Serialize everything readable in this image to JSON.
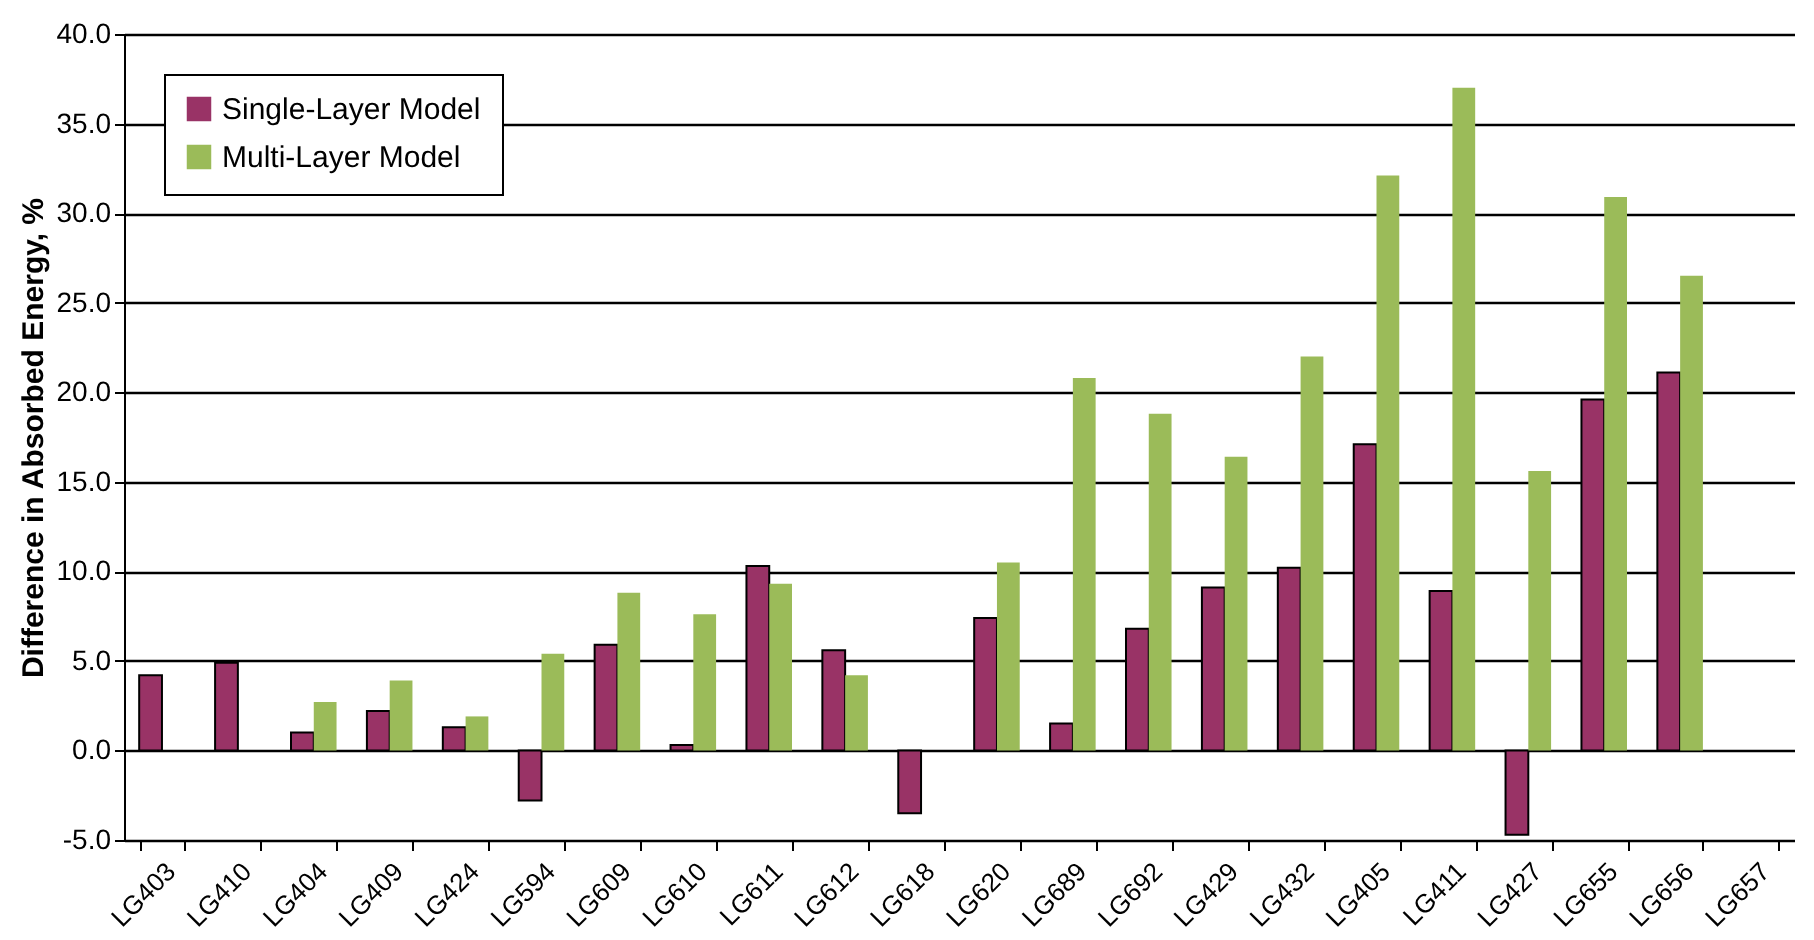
{
  "chart_data": {
    "type": "bar",
    "ylabel": "Difference in Absorbed Energy, %",
    "categories": [
      "LG403",
      "LG410",
      "LG404",
      "LG409",
      "LG424",
      "LG594",
      "LG609",
      "LG610",
      "LG611",
      "LG612",
      "LG618",
      "LG620",
      "LG689",
      "LG692",
      "LG429",
      "LG432",
      "LG405",
      "LG411",
      "LG427",
      "LG655",
      "LG656",
      "LG657"
    ],
    "series": [
      {
        "name": "Single-Layer Model",
        "color": "#993366",
        "values": [
          4.2,
          4.9,
          1.0,
          2.2,
          1.3,
          -2.8,
          5.9,
          0.3,
          10.3,
          5.6,
          -3.5,
          7.4,
          1.5,
          6.8,
          9.1,
          10.2,
          17.1,
          8.9,
          -4.7,
          19.6,
          21.1,
          null
        ]
      },
      {
        "name": "Multi-Layer Model",
        "color": "#9bbb59",
        "values": [
          null,
          null,
          2.7,
          3.9,
          1.9,
          5.4,
          8.8,
          7.6,
          9.3,
          4.2,
          null,
          10.5,
          20.8,
          18.8,
          16.4,
          22.0,
          32.1,
          37.0,
          15.6,
          30.9,
          26.5,
          null
        ]
      }
    ],
    "ylim": [
      -5,
      40
    ],
    "yticks": [
      {
        "value": -5,
        "label": "-5.0"
      },
      {
        "value": 0,
        "label": "0.0"
      },
      {
        "value": 5,
        "label": "5.0"
      },
      {
        "value": 10,
        "label": "10.0"
      },
      {
        "value": 15,
        "label": "15.0"
      },
      {
        "value": 20,
        "label": "20.0"
      },
      {
        "value": 25,
        "label": "25.0"
      },
      {
        "value": 30,
        "label": "30.0"
      },
      {
        "value": 35,
        "label": "35.0"
      },
      {
        "value": 40,
        "label": "40.0"
      }
    ],
    "grid": "y",
    "legend": "top left"
  }
}
